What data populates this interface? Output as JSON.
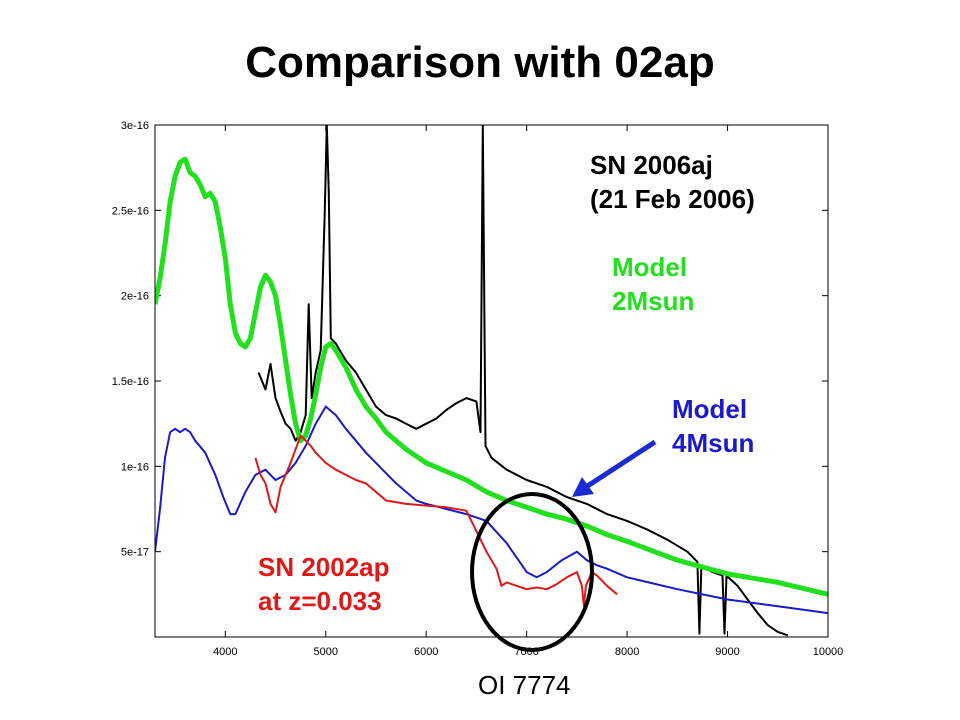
{
  "slide_title": "Comparison with 02ap",
  "annotations": {
    "sn2006aj_line1": "SN 2006aj",
    "sn2006aj_line2": "(21 Feb 2006)",
    "model2_line1": "Model",
    "model2_line2": "2Msun",
    "model4_line1": "Model",
    "model4_line2": "4Msun",
    "sn2002ap_line1": "SN 2002ap",
    "sn2002ap_line2": "at z=0.033",
    "oi_label": "OI 7774"
  },
  "colors": {
    "sn2006aj": "#000000",
    "model_2msun": "#22e01e",
    "model_4msun": "#1a1acc",
    "sn2002ap": "#e01818",
    "arrow": "#1a2bd6",
    "circle": "#000000"
  },
  "chart_data": {
    "type": "line",
    "title": "",
    "xlabel": "",
    "ylabel": "",
    "xlim": [
      3300,
      10000
    ],
    "ylim": [
      0,
      3e-16
    ],
    "x_ticks": [
      4000,
      5000,
      6000,
      7000,
      8000,
      9000,
      10000
    ],
    "x_tick_labels": [
      "4000",
      "5000",
      "6000",
      "7000",
      "8000",
      "9000",
      "10000"
    ],
    "y_ticks": [
      5e-17,
      1e-16,
      1.5e-16,
      2e-16,
      2.5e-16,
      3e-16
    ],
    "y_tick_labels": [
      "5e-17",
      "1e-16",
      "1.5e-16",
      "2e-16",
      "2.5e-16",
      "3e-16"
    ],
    "series": [
      {
        "name": "SN 2006aj",
        "color_key": "sn2006aj",
        "points": [
          [
            4330,
            1.55e-16
          ],
          [
            4400,
            1.45e-16
          ],
          [
            4450,
            1.6e-16
          ],
          [
            4500,
            1.4e-16
          ],
          [
            4550,
            1.32e-16
          ],
          [
            4600,
            1.25e-16
          ],
          [
            4650,
            1.22e-16
          ],
          [
            4700,
            1.15e-16
          ],
          [
            4750,
            1.2e-16
          ],
          [
            4800,
            1.3e-16
          ],
          [
            4830,
            1.95e-16
          ],
          [
            4860,
            1.4e-16
          ],
          [
            4900,
            1.55e-16
          ],
          [
            4950,
            1.68e-16
          ],
          [
            4990,
            2.5e-16
          ],
          [
            5010,
            3e-16
          ],
          [
            5030,
            2.6e-16
          ],
          [
            5050,
            1.75e-16
          ],
          [
            5100,
            1.72e-16
          ],
          [
            5200,
            1.62e-16
          ],
          [
            5300,
            1.55e-16
          ],
          [
            5400,
            1.45e-16
          ],
          [
            5500,
            1.35e-16
          ],
          [
            5600,
            1.3e-16
          ],
          [
            5700,
            1.28e-16
          ],
          [
            5800,
            1.25e-16
          ],
          [
            5900,
            1.22e-16
          ],
          [
            6000,
            1.25e-16
          ],
          [
            6100,
            1.28e-16
          ],
          [
            6200,
            1.33e-16
          ],
          [
            6300,
            1.37e-16
          ],
          [
            6400,
            1.4e-16
          ],
          [
            6500,
            1.38e-16
          ],
          [
            6540,
            1.2e-16
          ],
          [
            6563,
            3e-16
          ],
          [
            6590,
            1.12e-16
          ],
          [
            6650,
            1.05e-16
          ],
          [
            6800,
            9.8e-17
          ],
          [
            7000,
            9.2e-17
          ],
          [
            7200,
            8.8e-17
          ],
          [
            7400,
            8.2e-17
          ],
          [
            7600,
            7.8e-17
          ],
          [
            7800,
            7.2e-17
          ],
          [
            8000,
            6.8e-17
          ],
          [
            8200,
            6.3e-17
          ],
          [
            8400,
            5.7e-17
          ],
          [
            8600,
            5e-17
          ],
          [
            8700,
            4.4e-17
          ],
          [
            8720,
            2e-18
          ],
          [
            8740,
            4.2e-17
          ],
          [
            8850,
            3.8e-17
          ],
          [
            8950,
            3.6e-17
          ],
          [
            8970,
            2e-18
          ],
          [
            8990,
            3.6e-17
          ],
          [
            9100,
            3e-17
          ],
          [
            9200,
            2.2e-17
          ],
          [
            9300,
            1.4e-17
          ],
          [
            9400,
            7e-18
          ],
          [
            9500,
            3e-18
          ],
          [
            9600,
            1e-18
          ]
        ]
      },
      {
        "name": "Model 2Msun",
        "color_key": "model_2msun",
        "points": [
          [
            3300,
            1.95e-16
          ],
          [
            3350,
            2.1e-16
          ],
          [
            3400,
            2.3e-16
          ],
          [
            3450,
            2.55e-16
          ],
          [
            3500,
            2.7e-16
          ],
          [
            3550,
            2.78e-16
          ],
          [
            3600,
            2.8e-16
          ],
          [
            3650,
            2.72e-16
          ],
          [
            3700,
            2.7e-16
          ],
          [
            3750,
            2.65e-16
          ],
          [
            3800,
            2.58e-16
          ],
          [
            3850,
            2.6e-16
          ],
          [
            3900,
            2.55e-16
          ],
          [
            3950,
            2.4e-16
          ],
          [
            4000,
            2.22e-16
          ],
          [
            4050,
            1.95e-16
          ],
          [
            4100,
            1.78e-16
          ],
          [
            4150,
            1.72e-16
          ],
          [
            4200,
            1.7e-16
          ],
          [
            4250,
            1.75e-16
          ],
          [
            4300,
            1.9e-16
          ],
          [
            4350,
            2.05e-16
          ],
          [
            4400,
            2.12e-16
          ],
          [
            4450,
            2.08e-16
          ],
          [
            4500,
            2e-16
          ],
          [
            4550,
            1.82e-16
          ],
          [
            4600,
            1.62e-16
          ],
          [
            4650,
            1.42e-16
          ],
          [
            4700,
            1.25e-16
          ],
          [
            4750,
            1.15e-16
          ],
          [
            4800,
            1.18e-16
          ],
          [
            4850,
            1.28e-16
          ],
          [
            4900,
            1.42e-16
          ],
          [
            4950,
            1.58e-16
          ],
          [
            5000,
            1.7e-16
          ],
          [
            5050,
            1.72e-16
          ],
          [
            5100,
            1.68e-16
          ],
          [
            5200,
            1.58e-16
          ],
          [
            5300,
            1.45e-16
          ],
          [
            5400,
            1.35e-16
          ],
          [
            5500,
            1.28e-16
          ],
          [
            5600,
            1.2e-16
          ],
          [
            5800,
            1.1e-16
          ],
          [
            6000,
            1.02e-16
          ],
          [
            6200,
            9.7e-17
          ],
          [
            6400,
            9.2e-17
          ],
          [
            6600,
            8.5e-17
          ],
          [
            6800,
            8e-17
          ],
          [
            7000,
            7.6e-17
          ],
          [
            7200,
            7.2e-17
          ],
          [
            7400,
            6.9e-17
          ],
          [
            7600,
            6.5e-17
          ],
          [
            7800,
            6e-17
          ],
          [
            8000,
            5.6e-17
          ],
          [
            8500,
            4.5e-17
          ],
          [
            9000,
            3.7e-17
          ],
          [
            9500,
            3.2e-17
          ],
          [
            10000,
            2.5e-17
          ]
        ]
      },
      {
        "name": "Model 4Msun",
        "color_key": "model_4msun",
        "points": [
          [
            3300,
            5e-17
          ],
          [
            3350,
            7.5e-17
          ],
          [
            3400,
            1.05e-16
          ],
          [
            3450,
            1.2e-16
          ],
          [
            3500,
            1.22e-16
          ],
          [
            3550,
            1.2e-16
          ],
          [
            3600,
            1.22e-16
          ],
          [
            3650,
            1.2e-16
          ],
          [
            3700,
            1.15e-16
          ],
          [
            3800,
            1.08e-16
          ],
          [
            3900,
            9.5e-17
          ],
          [
            3980,
            8.2e-17
          ],
          [
            4050,
            7.2e-17
          ],
          [
            4100,
            7.2e-17
          ],
          [
            4200,
            8.5e-17
          ],
          [
            4300,
            9.5e-17
          ],
          [
            4400,
            9.8e-17
          ],
          [
            4450,
            9.5e-17
          ],
          [
            4500,
            9.2e-17
          ],
          [
            4600,
            9.5e-17
          ],
          [
            4700,
            1.02e-16
          ],
          [
            4800,
            1.12e-16
          ],
          [
            4900,
            1.25e-16
          ],
          [
            5000,
            1.35e-16
          ],
          [
            5100,
            1.3e-16
          ],
          [
            5200,
            1.22e-16
          ],
          [
            5300,
            1.15e-16
          ],
          [
            5400,
            1.08e-16
          ],
          [
            5500,
            1.02e-16
          ],
          [
            5600,
            9.6e-17
          ],
          [
            5700,
            9e-17
          ],
          [
            5800,
            8.5e-17
          ],
          [
            5900,
            8e-17
          ],
          [
            6000,
            7.8e-17
          ],
          [
            6200,
            7.5e-17
          ],
          [
            6400,
            7.2e-17
          ],
          [
            6600,
            6.8e-17
          ],
          [
            6800,
            5.5e-17
          ],
          [
            7000,
            3.8e-17
          ],
          [
            7100,
            3.5e-17
          ],
          [
            7200,
            3.8e-17
          ],
          [
            7350,
            4.5e-17
          ],
          [
            7500,
            5e-17
          ],
          [
            7600,
            4.5e-17
          ],
          [
            7700,
            4.2e-17
          ],
          [
            7800,
            4e-17
          ],
          [
            8000,
            3.5e-17
          ],
          [
            8500,
            2.8e-17
          ],
          [
            9000,
            2.2e-17
          ],
          [
            9500,
            1.8e-17
          ],
          [
            10000,
            1.4e-17
          ]
        ]
      },
      {
        "name": "SN 2002ap at z=0.033",
        "color_key": "sn2002ap",
        "points": [
          [
            4300,
            1.05e-16
          ],
          [
            4350,
            9.5e-17
          ],
          [
            4400,
            9e-17
          ],
          [
            4450,
            7.8e-17
          ],
          [
            4500,
            7.3e-17
          ],
          [
            4550,
            8.8e-17
          ],
          [
            4600,
            9.5e-17
          ],
          [
            4650,
            1.02e-16
          ],
          [
            4700,
            1.1e-16
          ],
          [
            4750,
            1.18e-16
          ],
          [
            4800,
            1.15e-16
          ],
          [
            4850,
            1.12e-16
          ],
          [
            4900,
            1.08e-16
          ],
          [
            5000,
            1.02e-16
          ],
          [
            5100,
            9.8e-17
          ],
          [
            5200,
            9.5e-17
          ],
          [
            5300,
            9.2e-17
          ],
          [
            5400,
            9e-17
          ],
          [
            5500,
            8.5e-17
          ],
          [
            5600,
            8e-17
          ],
          [
            5800,
            7.8e-17
          ],
          [
            6000,
            7.7e-17
          ],
          [
            6200,
            7.6e-17
          ],
          [
            6400,
            7.4e-17
          ],
          [
            6500,
            6.2e-17
          ],
          [
            6600,
            5e-17
          ],
          [
            6700,
            4e-17
          ],
          [
            6750,
            3e-17
          ],
          [
            6800,
            3.2e-17
          ],
          [
            6900,
            3e-17
          ],
          [
            7000,
            2.8e-17
          ],
          [
            7100,
            2.9e-17
          ],
          [
            7200,
            2.8e-17
          ],
          [
            7300,
            3.1e-17
          ],
          [
            7400,
            3.5e-17
          ],
          [
            7500,
            3.8e-17
          ],
          [
            7550,
            3e-17
          ],
          [
            7570,
            1.8e-17
          ],
          [
            7590,
            3e-17
          ],
          [
            7650,
            3.8e-17
          ],
          [
            7700,
            3.6e-17
          ],
          [
            7800,
            3e-17
          ],
          [
            7900,
            2.5e-17
          ]
        ]
      }
    ]
  }
}
